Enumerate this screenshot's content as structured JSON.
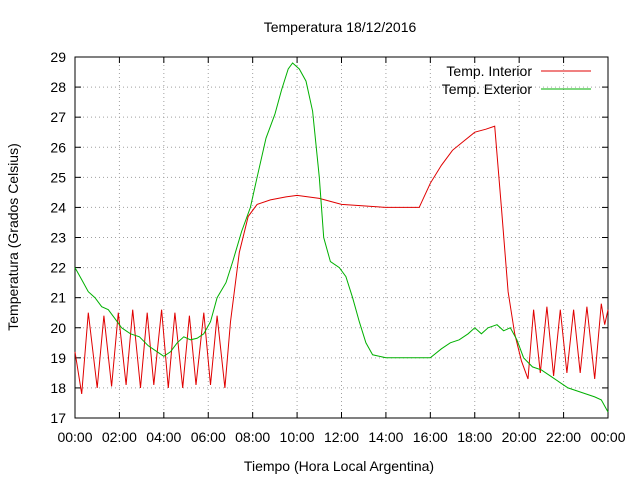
{
  "chart_data": {
    "type": "line",
    "title": "Temperatura 18/12/2016",
    "xlabel": "Tiempo (Hora Local Argentina)",
    "ylabel": "Temperatura (Grados Celsius)",
    "xlim": [
      0,
      24
    ],
    "ylim": [
      17,
      29
    ],
    "x_ticks": [
      0,
      2,
      4,
      6,
      8,
      10,
      12,
      14,
      16,
      18,
      20,
      22,
      24
    ],
    "x_tick_labels": [
      "00:00",
      "02:00",
      "04:00",
      "06:00",
      "08:00",
      "10:00",
      "12:00",
      "14:00",
      "16:00",
      "18:00",
      "20:00",
      "22:00",
      "00:00"
    ],
    "y_ticks": [
      17,
      18,
      19,
      20,
      21,
      22,
      23,
      24,
      25,
      26,
      27,
      28,
      29
    ],
    "y_tick_labels": [
      "17",
      "18",
      "19",
      "20",
      "21",
      "22",
      "23",
      "24",
      "25",
      "26",
      "27",
      "28",
      "29"
    ],
    "x_unit": "hours",
    "grid": true,
    "legend_position": "top-right",
    "series": [
      {
        "name": "Temp. Interior",
        "color": "#e00000",
        "points": [
          [
            0.0,
            19.2
          ],
          [
            0.3,
            17.8
          ],
          [
            0.6,
            20.5
          ],
          [
            1.0,
            18.0
          ],
          [
            1.3,
            20.4
          ],
          [
            1.65,
            18.05
          ],
          [
            1.95,
            20.5
          ],
          [
            2.3,
            18.1
          ],
          [
            2.6,
            20.6
          ],
          [
            2.95,
            18.0
          ],
          [
            3.25,
            20.5
          ],
          [
            3.55,
            18.1
          ],
          [
            3.9,
            20.6
          ],
          [
            4.2,
            18.0
          ],
          [
            4.5,
            20.5
          ],
          [
            4.85,
            18.0
          ],
          [
            5.15,
            20.4
          ],
          [
            5.45,
            18.1
          ],
          [
            5.8,
            20.5
          ],
          [
            6.1,
            18.1
          ],
          [
            6.4,
            20.4
          ],
          [
            6.75,
            18.0
          ],
          [
            7.0,
            20.2
          ],
          [
            7.4,
            22.5
          ],
          [
            7.8,
            23.7
          ],
          [
            8.2,
            24.1
          ],
          [
            8.8,
            24.25
          ],
          [
            9.5,
            24.35
          ],
          [
            10.0,
            24.4
          ],
          [
            10.5,
            24.35
          ],
          [
            11.0,
            24.3
          ],
          [
            11.5,
            24.2
          ],
          [
            12.0,
            24.1
          ],
          [
            13.0,
            24.05
          ],
          [
            14.0,
            24.0
          ],
          [
            15.0,
            24.0
          ],
          [
            15.5,
            24.0
          ],
          [
            16.0,
            24.8
          ],
          [
            16.5,
            25.4
          ],
          [
            17.0,
            25.9
          ],
          [
            17.5,
            26.2
          ],
          [
            18.0,
            26.5
          ],
          [
            18.5,
            26.6
          ],
          [
            18.9,
            26.7
          ],
          [
            19.2,
            24.0
          ],
          [
            19.5,
            21.2
          ],
          [
            19.8,
            19.8
          ],
          [
            20.1,
            18.9
          ],
          [
            20.4,
            18.3
          ],
          [
            20.65,
            20.6
          ],
          [
            20.95,
            18.5
          ],
          [
            21.25,
            20.7
          ],
          [
            21.55,
            18.4
          ],
          [
            21.85,
            20.6
          ],
          [
            22.15,
            18.5
          ],
          [
            22.45,
            20.6
          ],
          [
            22.75,
            18.5
          ],
          [
            23.05,
            20.7
          ],
          [
            23.4,
            18.3
          ],
          [
            23.7,
            20.8
          ],
          [
            23.85,
            20.1
          ],
          [
            24.0,
            20.6
          ]
        ]
      },
      {
        "name": "Temp. Exterior",
        "color": "#00b000",
        "points": [
          [
            0.0,
            22.0
          ],
          [
            0.3,
            21.6
          ],
          [
            0.6,
            21.2
          ],
          [
            0.9,
            21.0
          ],
          [
            1.2,
            20.7
          ],
          [
            1.5,
            20.6
          ],
          [
            1.8,
            20.3
          ],
          [
            2.1,
            20.0
          ],
          [
            2.5,
            19.8
          ],
          [
            2.9,
            19.7
          ],
          [
            3.3,
            19.4
          ],
          [
            3.7,
            19.2
          ],
          [
            4.0,
            19.05
          ],
          [
            4.3,
            19.2
          ],
          [
            4.6,
            19.5
          ],
          [
            4.9,
            19.7
          ],
          [
            5.2,
            19.6
          ],
          [
            5.5,
            19.65
          ],
          [
            5.8,
            19.8
          ],
          [
            6.1,
            20.2
          ],
          [
            6.4,
            21.0
          ],
          [
            6.8,
            21.5
          ],
          [
            7.1,
            22.2
          ],
          [
            7.5,
            23.2
          ],
          [
            7.9,
            24.0
          ],
          [
            8.2,
            25.0
          ],
          [
            8.6,
            26.3
          ],
          [
            9.0,
            27.1
          ],
          [
            9.3,
            27.9
          ],
          [
            9.6,
            28.6
          ],
          [
            9.8,
            28.8
          ],
          [
            10.1,
            28.6
          ],
          [
            10.4,
            28.2
          ],
          [
            10.7,
            27.2
          ],
          [
            11.0,
            25.0
          ],
          [
            11.2,
            23.0
          ],
          [
            11.5,
            22.2
          ],
          [
            11.9,
            22.0
          ],
          [
            12.2,
            21.7
          ],
          [
            12.5,
            21.0
          ],
          [
            12.8,
            20.2
          ],
          [
            13.1,
            19.5
          ],
          [
            13.4,
            19.1
          ],
          [
            14.0,
            19.0
          ],
          [
            14.5,
            19.0
          ],
          [
            15.0,
            19.0
          ],
          [
            15.5,
            19.0
          ],
          [
            16.0,
            19.0
          ],
          [
            16.5,
            19.3
          ],
          [
            16.9,
            19.5
          ],
          [
            17.3,
            19.6
          ],
          [
            17.7,
            19.8
          ],
          [
            18.0,
            20.0
          ],
          [
            18.3,
            19.8
          ],
          [
            18.6,
            20.0
          ],
          [
            19.0,
            20.1
          ],
          [
            19.3,
            19.9
          ],
          [
            19.6,
            20.0
          ],
          [
            19.9,
            19.6
          ],
          [
            20.2,
            19.0
          ],
          [
            20.6,
            18.7
          ],
          [
            21.0,
            18.6
          ],
          [
            21.4,
            18.4
          ],
          [
            21.8,
            18.2
          ],
          [
            22.2,
            18.0
          ],
          [
            22.6,
            17.9
          ],
          [
            23.0,
            17.8
          ],
          [
            23.4,
            17.7
          ],
          [
            23.7,
            17.6
          ],
          [
            24.0,
            17.2
          ]
        ]
      }
    ]
  }
}
